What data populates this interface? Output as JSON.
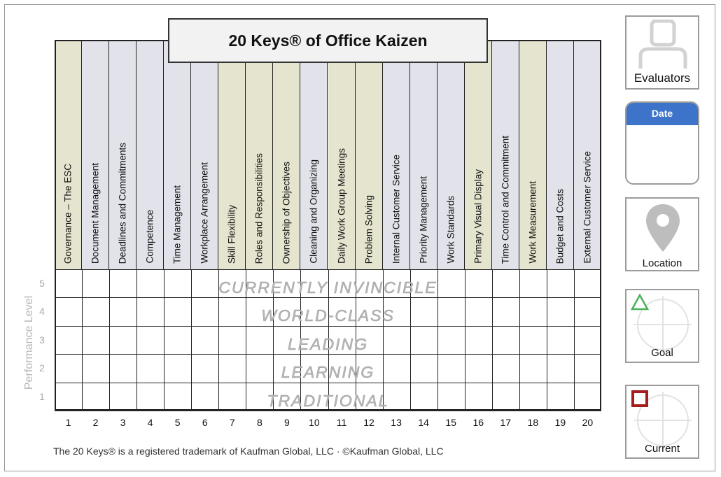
{
  "title": "20 Keys® of Office Kaizen",
  "keys": [
    {
      "num": "1",
      "label": "Governance – The ESC",
      "tone": "tan"
    },
    {
      "num": "2",
      "label": "Document Management",
      "tone": "gray"
    },
    {
      "num": "3",
      "label": "Deadlines and Commitments",
      "tone": "gray"
    },
    {
      "num": "4",
      "label": "Competence",
      "tone": "gray"
    },
    {
      "num": "5",
      "label": "Time Management",
      "tone": "gray"
    },
    {
      "num": "6",
      "label": "Workplace Arrangement",
      "tone": "gray"
    },
    {
      "num": "7",
      "label": "Skill Flexibility",
      "tone": "tan"
    },
    {
      "num": "8",
      "label": "Roles and Responsibilities",
      "tone": "tan"
    },
    {
      "num": "9",
      "label": "Ownership of Objectives",
      "tone": "tan"
    },
    {
      "num": "10",
      "label": "Cleaning and Organizing",
      "tone": "gray"
    },
    {
      "num": "11",
      "label": "Daily Work Group Meetings",
      "tone": "tan"
    },
    {
      "num": "12",
      "label": "Problem Solving",
      "tone": "tan"
    },
    {
      "num": "13",
      "label": "Internal Customer Service",
      "tone": "gray"
    },
    {
      "num": "14",
      "label": "Priority Management",
      "tone": "gray"
    },
    {
      "num": "15",
      "label": "Work Standards",
      "tone": "gray"
    },
    {
      "num": "16",
      "label": "Primary Visual Display",
      "tone": "tan"
    },
    {
      "num": "17",
      "label": "Time Control and Commitment",
      "tone": "gray"
    },
    {
      "num": "18",
      "label": "Work Measurement",
      "tone": "tan"
    },
    {
      "num": "19",
      "label": "Budget and Costs",
      "tone": "gray"
    },
    {
      "num": "20",
      "label": "External Customer Service",
      "tone": "gray"
    }
  ],
  "levels": [
    {
      "num": "5",
      "label": "CURRENTLY INVINCIBLE"
    },
    {
      "num": "4",
      "label": "WORLD-CLASS"
    },
    {
      "num": "3",
      "label": "LEADING"
    },
    {
      "num": "2",
      "label": "LEARNING"
    },
    {
      "num": "1",
      "label": "TRADITIONAL"
    }
  ],
  "y_axis_label": "Performance Level",
  "footer": "The 20 Keys® is a registered trademark of Kaufman Global, LLC · ©Kaufman Global, LLC",
  "sidebar": {
    "evaluators_label": "Evaluators",
    "date_label": "Date",
    "location_label": "Location",
    "goal_label": "Goal",
    "current_label": "Current"
  },
  "colors": {
    "tan": "#e5e4ce",
    "gray": "#e2e3ea",
    "date_header": "#3d73c9",
    "goal_marker": "#4cb05a",
    "current_marker": "#a51d1d"
  },
  "icons": {
    "evaluators": "person-icon",
    "location": "map-pin-icon",
    "goal": "triangle-icon",
    "current": "square-icon"
  }
}
